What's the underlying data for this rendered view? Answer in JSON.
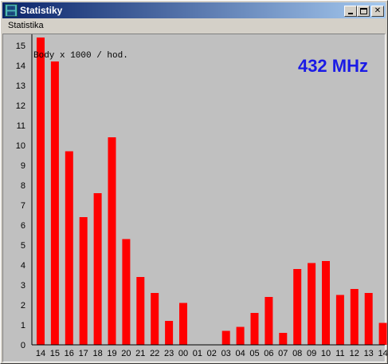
{
  "window": {
    "title": "Statistiky",
    "icon": "app-grid-icon"
  },
  "menu": {
    "items": [
      {
        "label": "Statistika"
      }
    ]
  },
  "chart_data": {
    "type": "bar",
    "title": "432 MHz",
    "ylabel": "Body x 1000 / hod.",
    "xlabel": "",
    "categories": [
      "14",
      "15",
      "16",
      "17",
      "18",
      "19",
      "20",
      "21",
      "22",
      "23",
      "00",
      "01",
      "02",
      "03",
      "04",
      "05",
      "06",
      "07",
      "08",
      "09",
      "10",
      "11",
      "12",
      "13",
      "14"
    ],
    "values": [
      15.4,
      14.2,
      9.7,
      6.4,
      7.6,
      10.4,
      5.3,
      3.4,
      2.6,
      1.2,
      2.1,
      0,
      0,
      0.7,
      0.9,
      1.6,
      2.4,
      0.6,
      3.8,
      4.1,
      4.2,
      2.5,
      2.8,
      2.6,
      1.1
    ],
    "yticks": [
      "0",
      "1",
      "2",
      "3",
      "4",
      "5",
      "6",
      "7",
      "8",
      "9",
      "10",
      "11",
      "12",
      "13",
      "14",
      "15"
    ],
    "ylim": [
      0,
      15.4
    ],
    "bar_color": "#ff0000",
    "title_color": "#1a1ae6",
    "background_color": "#c0c0c0",
    "grid": false,
    "legend": "none"
  }
}
